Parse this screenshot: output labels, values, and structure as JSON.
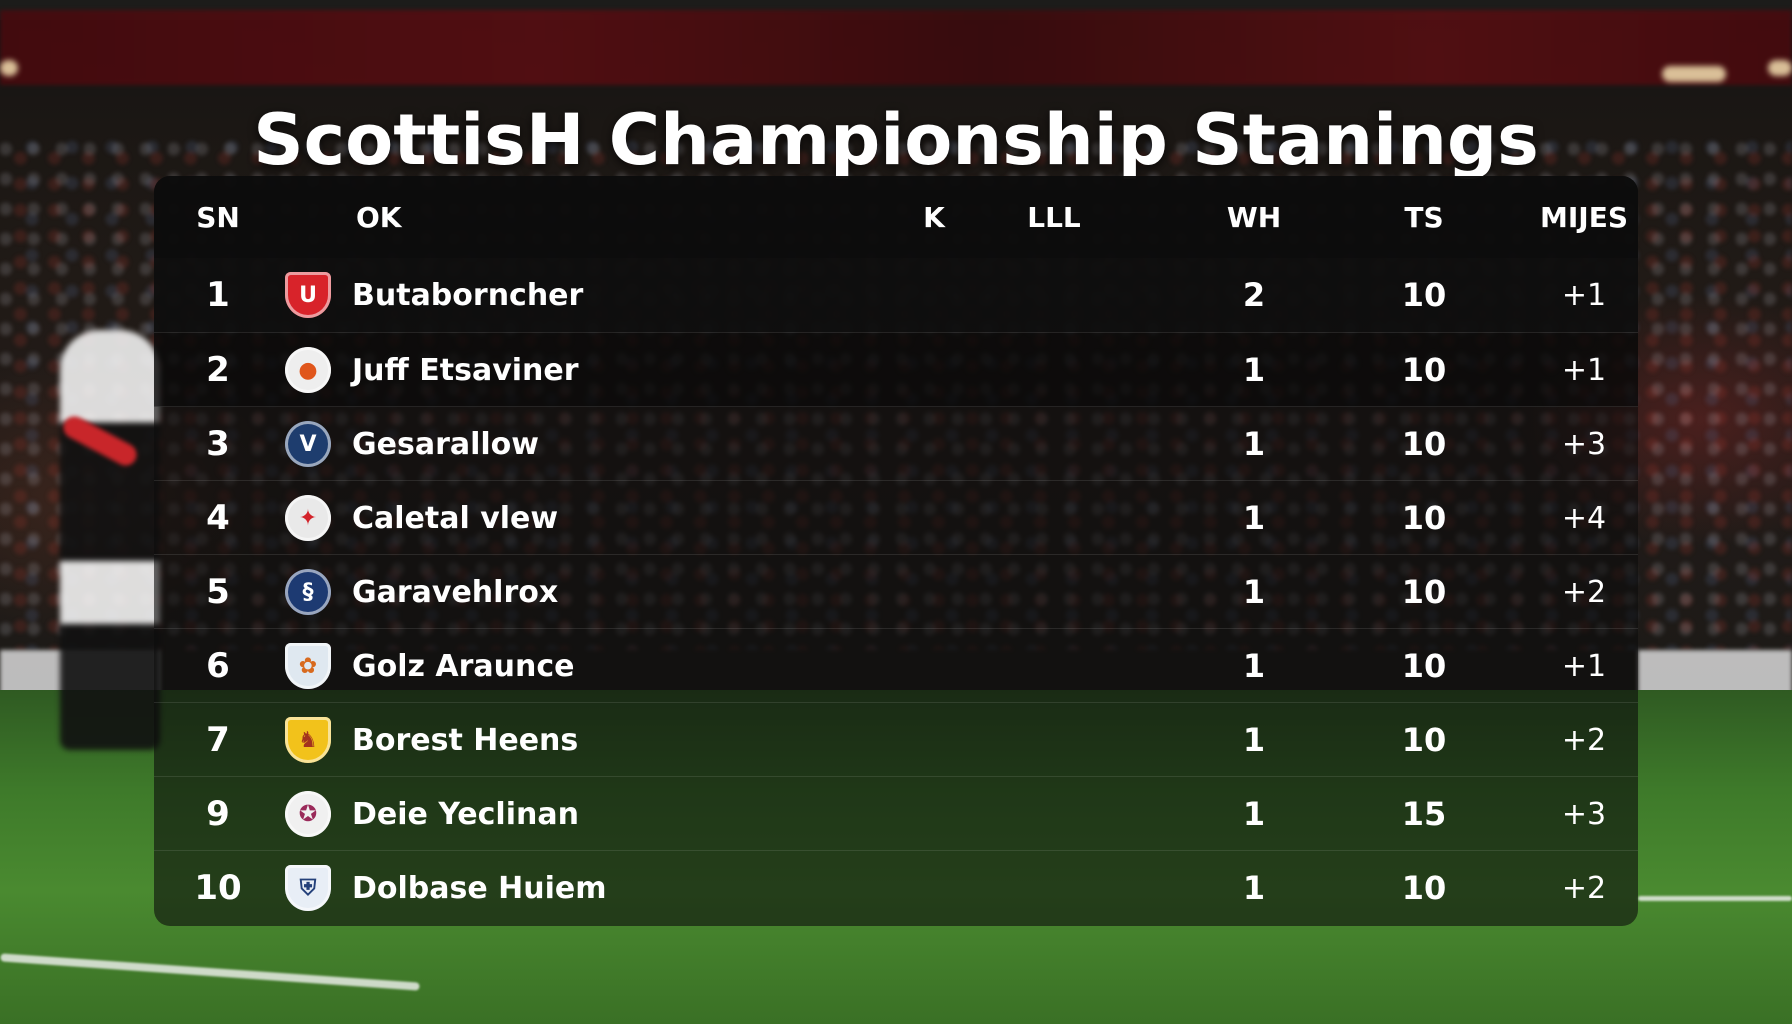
{
  "title": "ScottisH Championship Stanings",
  "table": {
    "columns": [
      {
        "key": "pos",
        "label": "SN"
      },
      {
        "key": "team",
        "label": "OK"
      },
      {
        "key": "k",
        "label": "K"
      },
      {
        "key": "lll",
        "label": "LLL"
      },
      {
        "key": "wh",
        "label": "WH"
      },
      {
        "key": "ts",
        "label": "TS"
      },
      {
        "key": "mijes",
        "label": "MIJES"
      }
    ],
    "rows": [
      {
        "pos": "1",
        "team": "Butaborncher",
        "wh": "2",
        "ts": "10",
        "mijes": "+1",
        "crest": {
          "icon": "red-shield-crest-icon",
          "shape": "shield",
          "bg": "#d8232a",
          "fg": "#ffffff",
          "glyph": "U"
        }
      },
      {
        "pos": "2",
        "team": "Juff Etsaviner",
        "wh": "1",
        "ts": "10",
        "mijes": "+1",
        "crest": {
          "icon": "orange-ball-round-crest-icon",
          "shape": "round",
          "bg": "#eeeeee",
          "fg": "#e0561c",
          "glyph": "●"
        }
      },
      {
        "pos": "3",
        "team": "Gesarallow",
        "wh": "1",
        "ts": "10",
        "mijes": "+3",
        "crest": {
          "icon": "navy-round-crest-icon",
          "shape": "round",
          "bg": "#1e3d6e",
          "fg": "#ffffff",
          "glyph": "V"
        }
      },
      {
        "pos": "4",
        "team": "Caletal vlew",
        "wh": "1",
        "ts": "10",
        "mijes": "+4",
        "crest": {
          "icon": "red-white-round-crest-icon",
          "shape": "round",
          "bg": "#e9e9e9",
          "fg": "#d3232a",
          "glyph": "✦"
        }
      },
      {
        "pos": "5",
        "team": "Garavehlrox",
        "wh": "1",
        "ts": "10",
        "mijes": "+2",
        "crest": {
          "icon": "blue-round-crest-icon",
          "shape": "round",
          "bg": "#1d3a72",
          "fg": "#ffffff",
          "glyph": "§"
        }
      },
      {
        "pos": "6",
        "team": "Golz Araunce",
        "wh": "1",
        "ts": "10",
        "mijes": "+1",
        "crest": {
          "icon": "light-blue-shield-crest-icon",
          "shape": "shield",
          "bg": "#dfe8f0",
          "fg": "#d86a1e",
          "glyph": "✿"
        }
      },
      {
        "pos": "7",
        "team": "Borest Heens",
        "wh": "1",
        "ts": "10",
        "mijes": "+2",
        "crest": {
          "icon": "yellow-shield-crest-icon",
          "shape": "shield",
          "bg": "#f2c21b",
          "fg": "#a3321e",
          "glyph": "♞"
        }
      },
      {
        "pos": "9",
        "team": "Deie Yeclinan",
        "wh": "1",
        "ts": "15",
        "mijes": "+3",
        "crest": {
          "icon": "white-round-crest-icon",
          "shape": "round",
          "bg": "#f0f0f0",
          "fg": "#9a2a5a",
          "glyph": "✪"
        }
      },
      {
        "pos": "10",
        "team": "Dolbase Huiem",
        "wh": "1",
        "ts": "10",
        "mijes": "+2",
        "crest": {
          "icon": "blue-white-shield-crest-icon",
          "shape": "shield",
          "bg": "#e8eef6",
          "fg": "#24407a",
          "glyph": "⛨"
        }
      }
    ]
  },
  "colors": {
    "text": "#ffffff",
    "panel_bg": "rgba(12,12,12,0.60)",
    "header_bg": "rgba(12,12,12,0.92)"
  }
}
